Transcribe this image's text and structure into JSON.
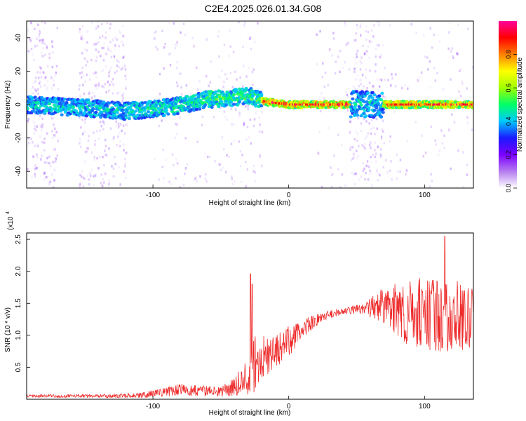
{
  "title": "C2E4.2025.026.01.34.G08",
  "chart_data": [
    {
      "type": "heatmap",
      "xlabel": "Height of straight line (km)",
      "ylabel": "Frequency (Hz)",
      "xlim": [
        -193,
        136
      ],
      "ylim": [
        -50,
        50
      ],
      "xticks": [
        -100,
        0,
        100
      ],
      "yticks": [
        -40,
        -20,
        0,
        20,
        40
      ],
      "colorbar": {
        "label": "Normalized spectral amplitude",
        "range": [
          0,
          1
        ],
        "ticks": [
          0.0,
          0.2,
          0.4,
          0.6,
          0.8
        ],
        "tick_labels": [
          "0.0",
          "0.2",
          "0.4",
          "0.6",
          "0.8"
        ],
        "colors": [
          "#ffffff",
          "#b57cf0",
          "#7b00ff",
          "#1a1aff",
          "#00c8ff",
          "#00ff66",
          "#a0ff00",
          "#ffff00",
          "#ff8000",
          "#ff0000",
          "#ff0099"
        ]
      },
      "ridge": [
        {
          "x": -193,
          "y": 0
        },
        {
          "x": -150,
          "y": -2
        },
        {
          "x": -120,
          "y": -4
        },
        {
          "x": -90,
          "y": -2
        },
        {
          "x": -60,
          "y": 3
        },
        {
          "x": -40,
          "y": 4
        },
        {
          "x": -30,
          "y": 6
        },
        {
          "x": -20,
          "y": 2
        },
        {
          "x": 0,
          "y": 0
        },
        {
          "x": 50,
          "y": 0
        },
        {
          "x": 70,
          "y": 0
        },
        {
          "x": 100,
          "y": 0
        },
        {
          "x": 136,
          "y": 0
        }
      ]
    },
    {
      "type": "line",
      "xlabel": "Height of straight line (km)",
      "ylabel": "SNR (10 * v/v)",
      "scale_label": "(x10",
      "scale_exp": "4",
      "xlim": [
        -193,
        136
      ],
      "ylim": [
        0,
        2.6
      ],
      "xticks": [
        -100,
        0,
        100
      ],
      "yticks": [
        0.5,
        1.0,
        1.5,
        2.0,
        2.5
      ],
      "ytick_labels": [
        "0.5",
        "1.0",
        "1.5",
        "2.0",
        "2.5"
      ],
      "series": [
        {
          "name": "SNR",
          "color": "#ee2b2b",
          "envelope": [
            {
              "x": -193,
              "mean": 0.05,
              "amp": 0.02
            },
            {
              "x": -130,
              "mean": 0.05,
              "amp": 0.03
            },
            {
              "x": -110,
              "mean": 0.06,
              "amp": 0.04
            },
            {
              "x": -95,
              "mean": 0.1,
              "amp": 0.06
            },
            {
              "x": -80,
              "mean": 0.15,
              "amp": 0.1
            },
            {
              "x": -65,
              "mean": 0.13,
              "amp": 0.08
            },
            {
              "x": -50,
              "mean": 0.12,
              "amp": 0.08
            },
            {
              "x": -40,
              "mean": 0.2,
              "amp": 0.15
            },
            {
              "x": -30,
              "mean": 0.35,
              "amp": 0.3
            },
            {
              "x": -25,
              "mean": 0.55,
              "amp": 0.45
            },
            {
              "x": -15,
              "mean": 0.7,
              "amp": 0.3
            },
            {
              "x": 0,
              "mean": 0.9,
              "amp": 0.25
            },
            {
              "x": 10,
              "mean": 1.1,
              "amp": 0.15
            },
            {
              "x": 25,
              "mean": 1.3,
              "amp": 0.07
            },
            {
              "x": 40,
              "mean": 1.38,
              "amp": 0.05
            },
            {
              "x": 55,
              "mean": 1.42,
              "amp": 0.08
            },
            {
              "x": 70,
              "mean": 1.45,
              "amp": 0.3
            },
            {
              "x": 90,
              "mean": 1.35,
              "amp": 0.55
            },
            {
              "x": 110,
              "mean": 1.3,
              "amp": 0.6
            },
            {
              "x": 136,
              "mean": 1.3,
              "amp": 0.5
            }
          ],
          "peaks": [
            {
              "x": -28,
              "y": 1.96
            },
            {
              "x": -27,
              "y": 1.8
            },
            {
              "x": 115,
              "y": 2.55
            }
          ]
        }
      ]
    }
  ]
}
